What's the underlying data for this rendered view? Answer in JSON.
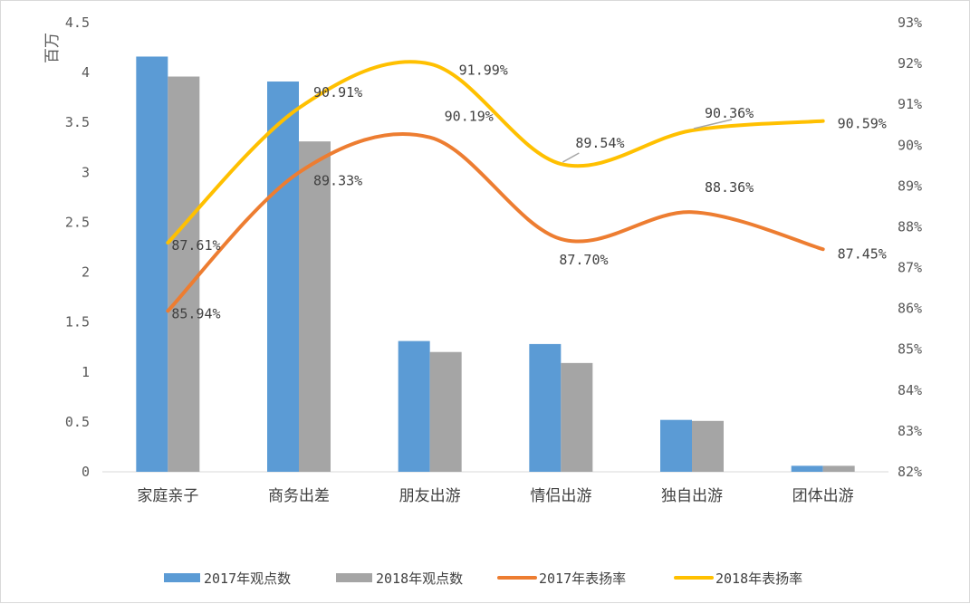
{
  "chart_data": {
    "type": "bar+line",
    "categories": [
      "家庭亲子",
      "商务出差",
      "朋友出游",
      "情侣出游",
      "独自出游",
      "团体出游"
    ],
    "y_left": {
      "unit_label": "百万",
      "range": [
        0,
        4.5
      ],
      "ticks": [
        0,
        0.5,
        1,
        1.5,
        2,
        2.5,
        3,
        3.5,
        4,
        4.5
      ],
      "tick_labels": [
        "0",
        "0.5",
        "1",
        "1.5",
        "2",
        "2.5",
        "3",
        "3.5",
        "4",
        "4.5"
      ]
    },
    "y_right": {
      "range": [
        82,
        93
      ],
      "ticks": [
        82,
        83,
        84,
        85,
        86,
        87,
        88,
        89,
        90,
        91,
        92,
        93
      ],
      "tick_labels": [
        "82%",
        "83%",
        "84%",
        "85%",
        "86%",
        "87%",
        "88%",
        "89%",
        "90%",
        "91%",
        "92%",
        "93%"
      ]
    },
    "bar_series": [
      {
        "name": "2017年观点数",
        "color": "#5b9bd5",
        "values": [
          4.16,
          3.91,
          1.31,
          1.28,
          0.52,
          0.06
        ]
      },
      {
        "name": "2018年观点数",
        "color": "#a5a5a5",
        "values": [
          3.96,
          3.31,
          1.2,
          1.09,
          0.51,
          0.06
        ]
      }
    ],
    "line_series": [
      {
        "name": "2017年表扬率",
        "color": "#ed7d31",
        "values": [
          85.94,
          89.33,
          90.19,
          87.7,
          88.36,
          87.45
        ],
        "labels": [
          "85.94%",
          "89.33%",
          "90.19%",
          "87.70%",
          "88.36%",
          "87.45%"
        ]
      },
      {
        "name": "2018年表扬率",
        "color": "#ffc000",
        "values": [
          87.61,
          90.91,
          91.99,
          89.54,
          90.36,
          90.59
        ],
        "labels": [
          "87.61%",
          "90.91%",
          "91.99%",
          "89.54%",
          "90.36%",
          "90.59%"
        ]
      }
    ],
    "legend": {
      "position": "bottom",
      "items": [
        "2017年观点数",
        "2018年观点数",
        "2017年表扬率",
        "2018年表扬率"
      ]
    },
    "grid": false
  }
}
